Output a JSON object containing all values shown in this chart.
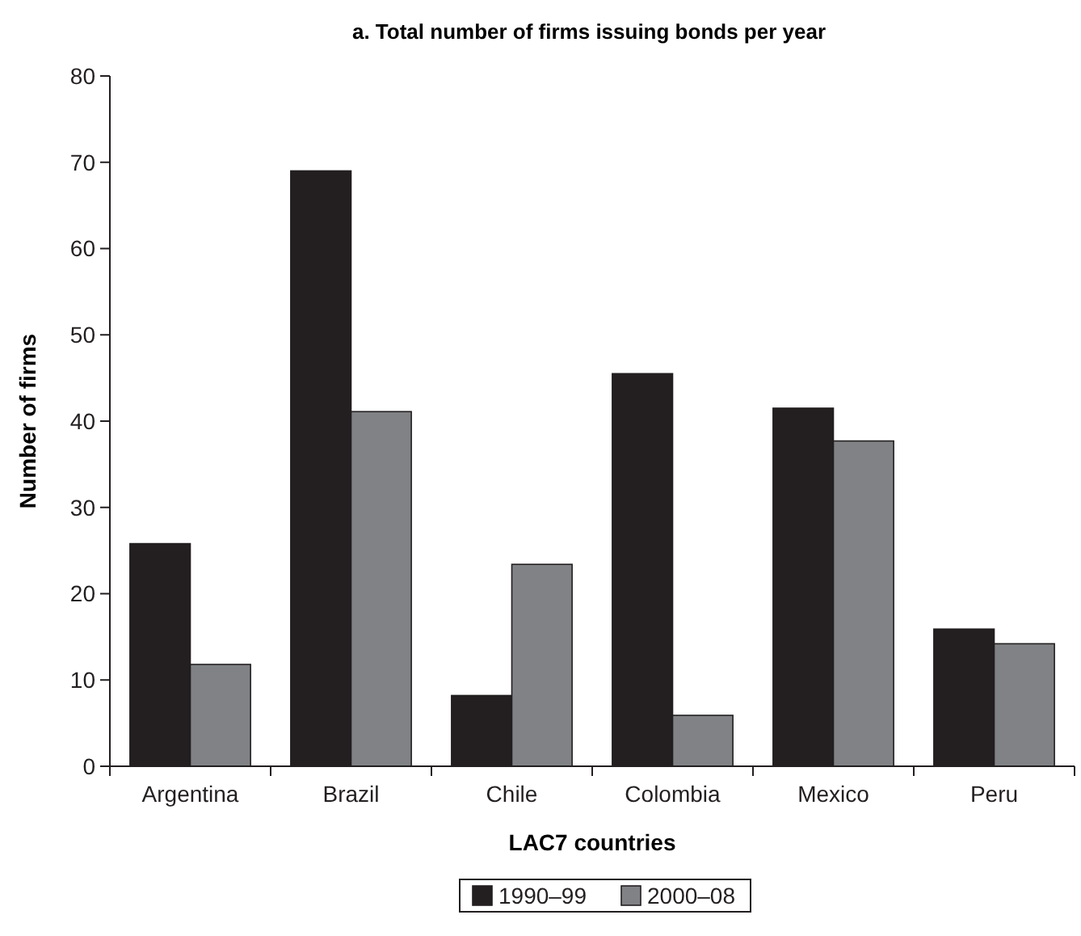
{
  "chart_data": {
    "type": "bar",
    "title": "a. Total number of firms issuing bonds per year",
    "xlabel": "LAC7 countries",
    "ylabel": "Number of firms",
    "categories": [
      "Argentina",
      "Brazil",
      "Chile",
      "Colombia",
      "Mexico",
      "Peru"
    ],
    "series": [
      {
        "name": "1990–99",
        "color": "#231f20",
        "values": [
          25.8,
          69.0,
          8.2,
          45.5,
          41.5,
          15.9
        ]
      },
      {
        "name": "2000–08",
        "color": "#808285",
        "values": [
          11.8,
          41.1,
          23.4,
          5.9,
          37.7,
          14.2
        ]
      }
    ],
    "ylim": [
      0,
      80
    ],
    "yticks": [
      0,
      10,
      20,
      30,
      40,
      50,
      60,
      70,
      80
    ],
    "grid": false,
    "legend": "bottom"
  }
}
